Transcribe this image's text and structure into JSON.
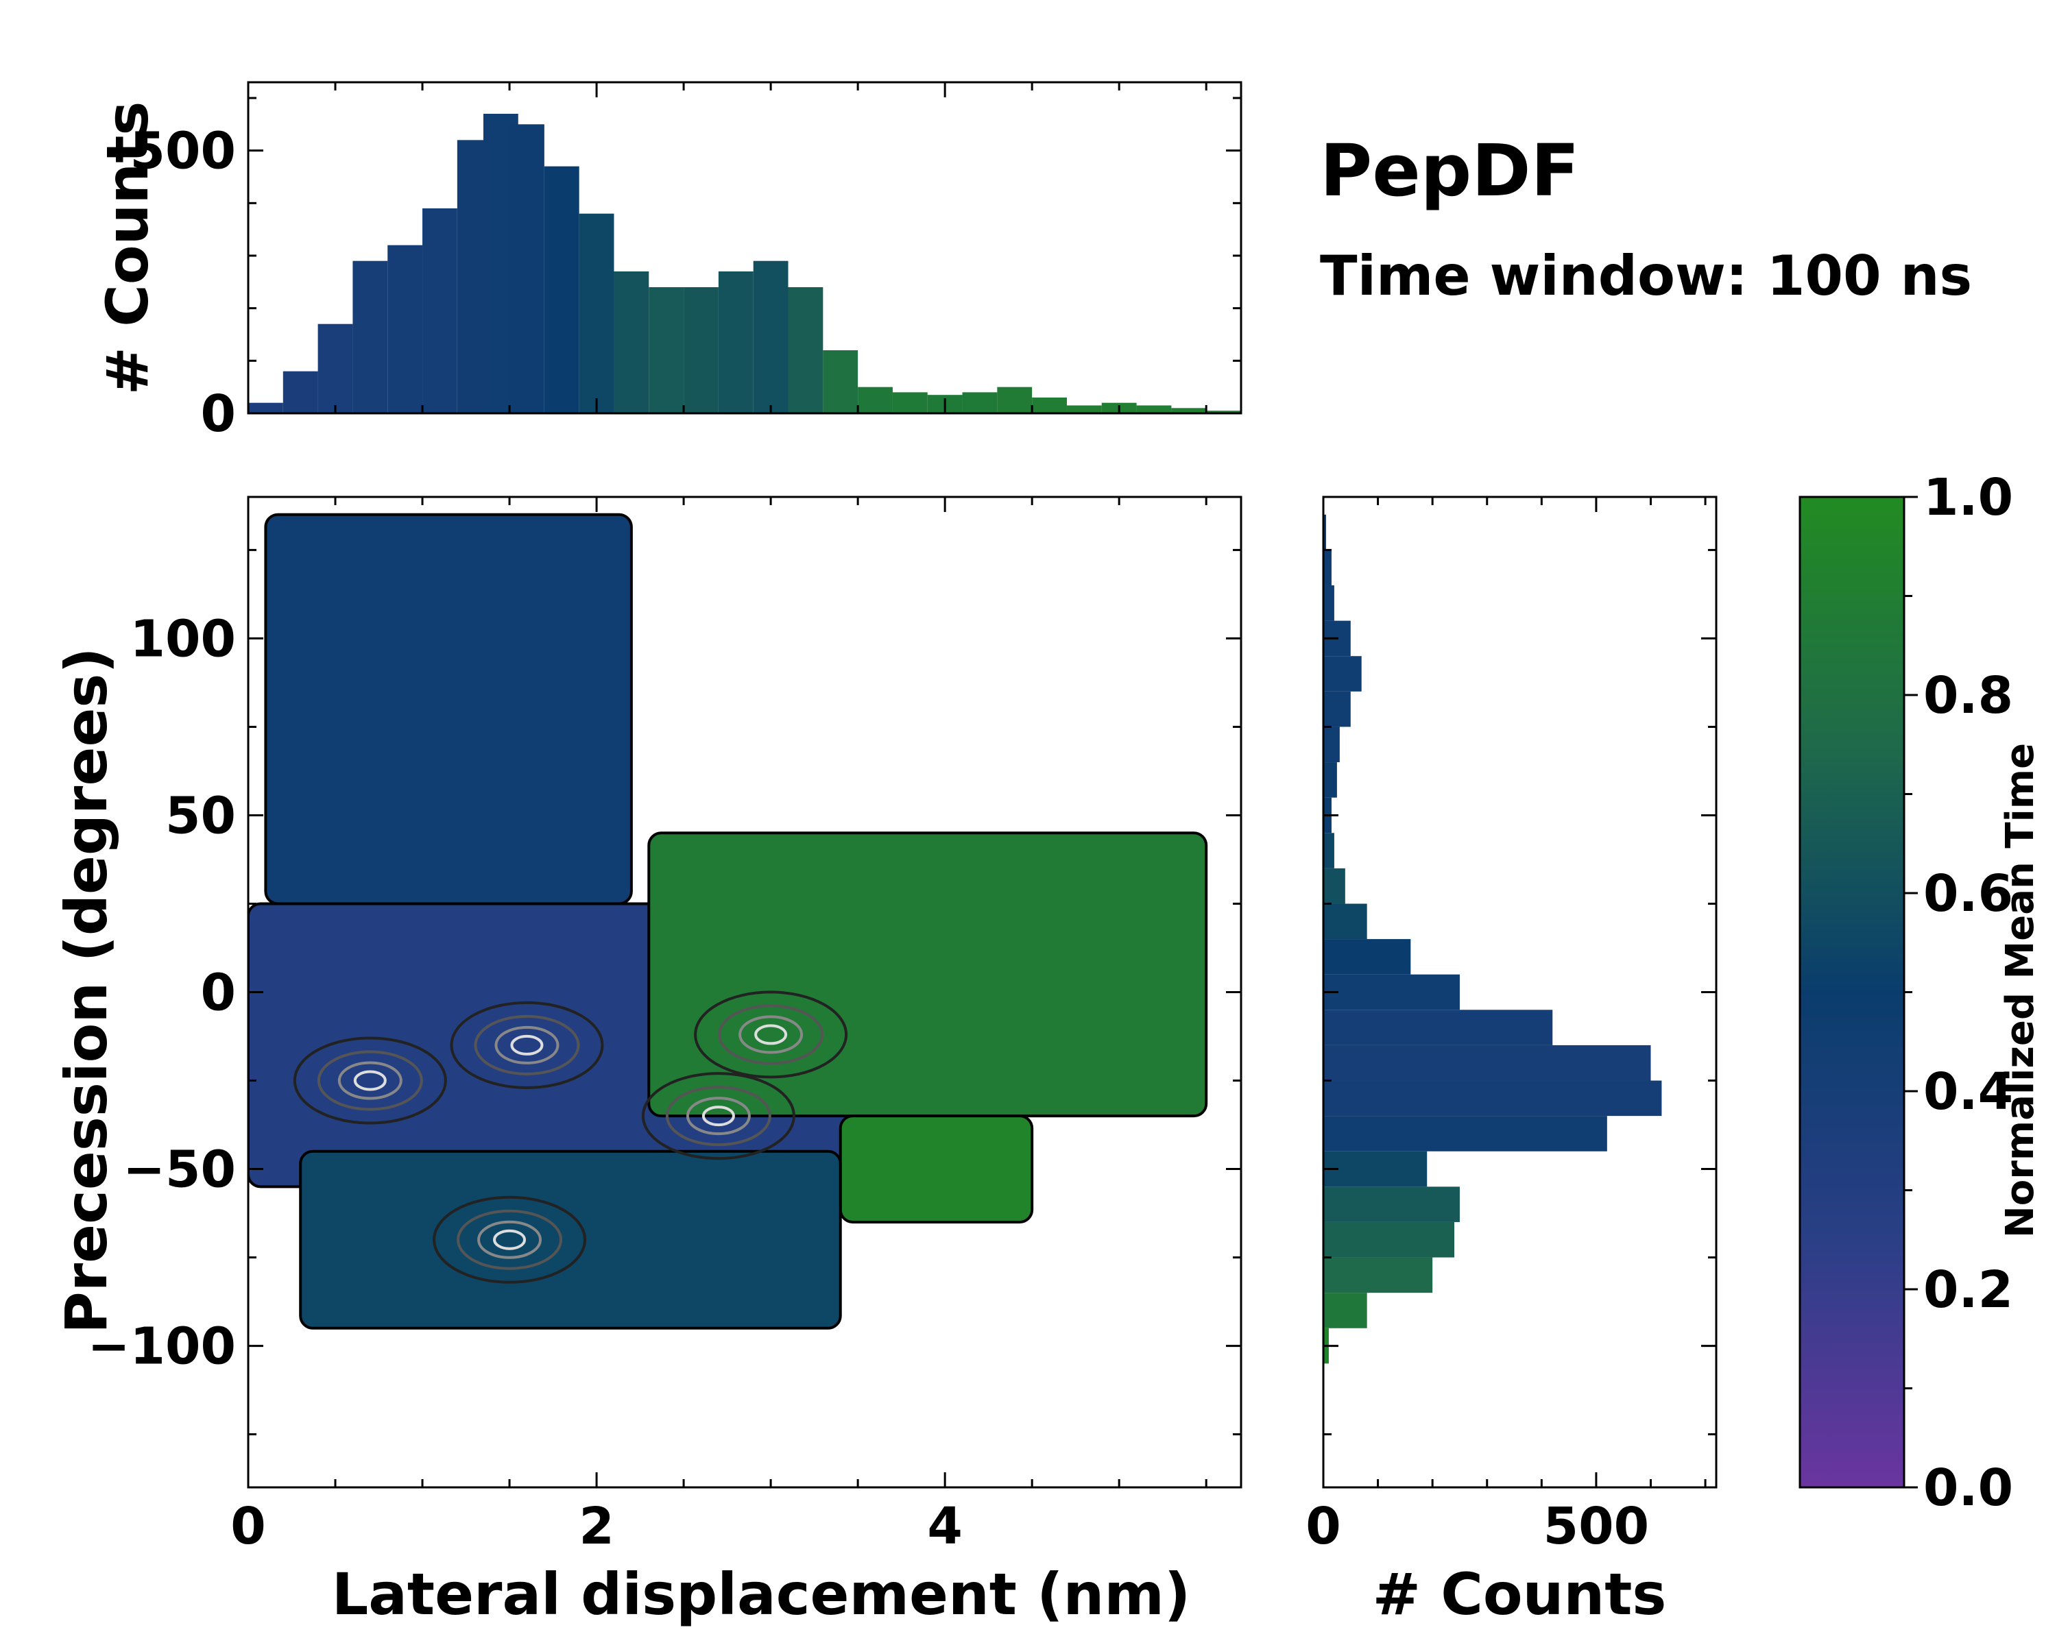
{
  "title": "PepDF",
  "subtitle": "Time window: 100 ns",
  "chart_data": [
    {
      "id": "top-histogram",
      "type": "bar",
      "ylabel": "# Counts",
      "xlim": [
        0,
        5.7
      ],
      "ylim": [
        0,
        630
      ],
      "yticks": [
        0,
        500
      ],
      "x": [
        0.1,
        0.3,
        0.5,
        0.7,
        0.9,
        1.1,
        1.3,
        1.45,
        1.6,
        1.8,
        2.0,
        2.2,
        2.4,
        2.6,
        2.8,
        3.0,
        3.2,
        3.4,
        3.6,
        3.8,
        4.0,
        4.2,
        4.4,
        4.6,
        4.8,
        5.0,
        5.2,
        5.4,
        5.6
      ],
      "values": [
        20,
        80,
        170,
        290,
        320,
        390,
        520,
        570,
        550,
        470,
        380,
        270,
        240,
        240,
        270,
        290,
        240,
        120,
        50,
        40,
        35,
        40,
        50,
        30,
        15,
        20,
        15,
        10,
        5
      ],
      "mean_time": [
        0.35,
        0.37,
        0.38,
        0.4,
        0.41,
        0.42,
        0.44,
        0.45,
        0.46,
        0.5,
        0.55,
        0.62,
        0.66,
        0.64,
        0.62,
        0.6,
        0.68,
        0.8,
        0.85,
        0.87,
        0.87,
        0.87,
        0.88,
        0.89,
        0.9,
        0.9,
        0.9,
        0.9,
        0.9
      ]
    },
    {
      "id": "main-heatmap",
      "type": "heatmap",
      "xlabel": "Lateral displacement (nm)",
      "ylabel": "Precession (degrees)",
      "xlim": [
        0,
        5.7
      ],
      "ylim": [
        -140,
        140
      ],
      "xticks": [
        0,
        2,
        4
      ],
      "yticks": [
        -100,
        -50,
        0,
        50,
        100
      ],
      "ytick_labels": [
        "−100",
        "−50",
        "0",
        "50",
        "100"
      ],
      "regions": [
        {
          "name": "upper-arm",
          "x": [
            0.1,
            2.2
          ],
          "y": [
            25,
            135
          ],
          "mean_time": 0.45
        },
        {
          "name": "central-band",
          "x": [
            0.0,
            3.5
          ],
          "y": [
            -55,
            25
          ],
          "mean_time": 0.3
        },
        {
          "name": "right-wing",
          "x": [
            2.3,
            5.5
          ],
          "y": [
            -35,
            45
          ],
          "mean_time": 0.88
        },
        {
          "name": "lower-green",
          "x": [
            3.4,
            4.5
          ],
          "y": [
            -65,
            -35
          ],
          "mean_time": 0.95
        },
        {
          "name": "lower-left",
          "x": [
            0.3,
            3.4
          ],
          "y": [
            -95,
            -45
          ],
          "mean_time": 0.55
        }
      ],
      "density_peaks": [
        {
          "x": 1.6,
          "y": -15
        },
        {
          "x": 0.7,
          "y": -25
        },
        {
          "x": 1.5,
          "y": -70
        },
        {
          "x": 2.7,
          "y": -35
        },
        {
          "x": 3.0,
          "y": -12
        }
      ]
    },
    {
      "id": "right-histogram",
      "type": "bar",
      "orientation": "horizontal",
      "xlabel": "# Counts",
      "xlim": [
        0,
        720
      ],
      "xticks": [
        0,
        500
      ],
      "y": [
        -100,
        -90,
        -80,
        -70,
        -60,
        -50,
        -40,
        -30,
        -20,
        -10,
        0,
        10,
        20,
        30,
        40,
        50,
        60,
        70,
        80,
        90,
        100,
        110,
        120,
        130
      ],
      "values": [
        10,
        80,
        200,
        240,
        250,
        190,
        520,
        620,
        600,
        420,
        250,
        160,
        80,
        40,
        20,
        15,
        25,
        30,
        50,
        70,
        50,
        20,
        15,
        5
      ],
      "mean_time": [
        0.95,
        0.85,
        0.75,
        0.7,
        0.65,
        0.55,
        0.45,
        0.42,
        0.4,
        0.42,
        0.45,
        0.5,
        0.55,
        0.6,
        0.55,
        0.5,
        0.48,
        0.45,
        0.45,
        0.45,
        0.45,
        0.45,
        0.46,
        0.47
      ]
    },
    {
      "id": "colorbar",
      "type": "colorbar",
      "label": "Normalized Mean Time",
      "range": [
        0.0,
        1.0
      ],
      "ticks": [
        "0.0",
        "0.2",
        "0.4",
        "0.6",
        "0.8",
        "1.0"
      ],
      "colors": [
        "#6a35a0",
        "#2a3f86",
        "#0a3d6d",
        "#1f6a4a",
        "#228b22"
      ]
    }
  ]
}
